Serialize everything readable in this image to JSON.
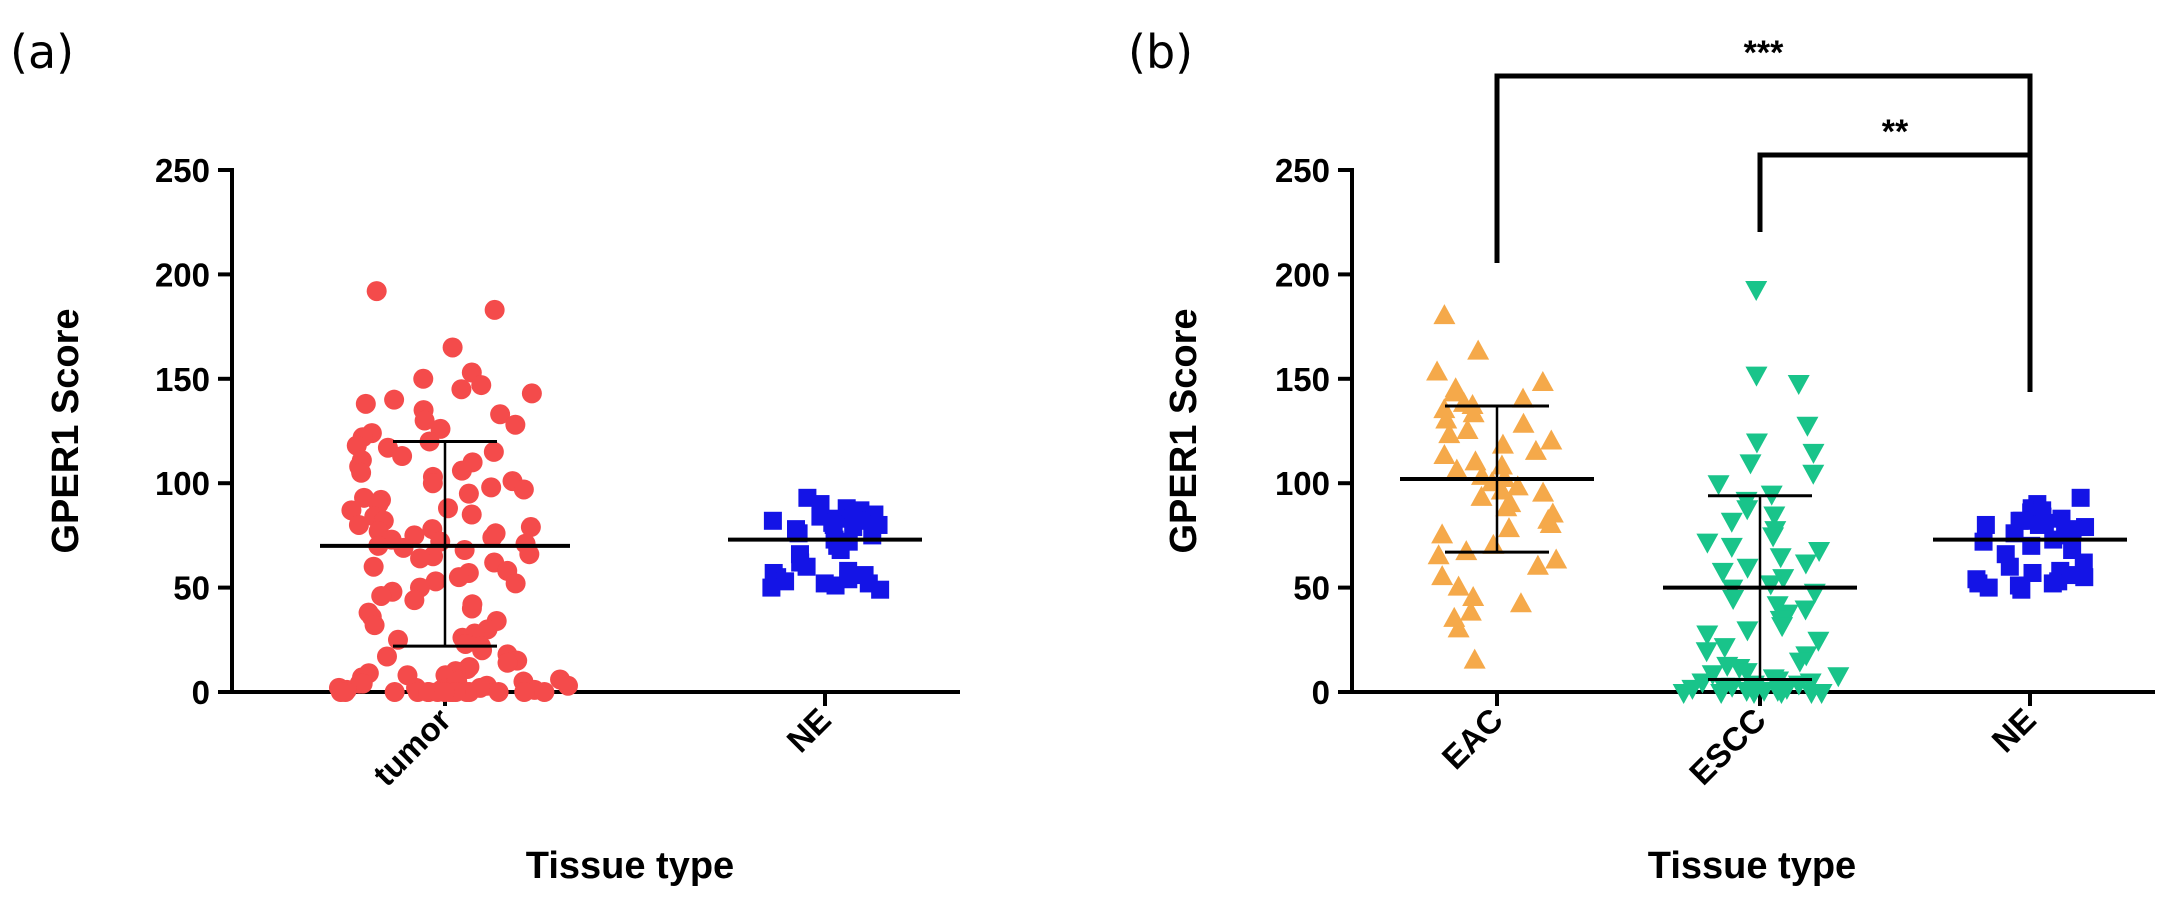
{
  "chart_data": [
    {
      "type": "scatter",
      "subtype": "dot-plot",
      "panel_label": "(a)",
      "xlabel": "Tissue type",
      "ylabel": "GPER1 Score",
      "ylim": [
        0,
        250
      ],
      "yticks": [
        0,
        50,
        100,
        150,
        200,
        250
      ],
      "categories": [
        "tumor",
        "NE"
      ],
      "series": [
        {
          "name": "tumor",
          "marker": "circle",
          "color": "#f44b4b",
          "mean": 70,
          "sd_upper": 120,
          "sd_lower": 22,
          "values": [
            192,
            183,
            165,
            153,
            150,
            147,
            145,
            143,
            140,
            138,
            135,
            133,
            130,
            128,
            126,
            124,
            122,
            120,
            118,
            117,
            115,
            113,
            111,
            110,
            108,
            106,
            105,
            103,
            101,
            100,
            98,
            97,
            95,
            93,
            92,
            90,
            88,
            87,
            85,
            84,
            82,
            80,
            79,
            78,
            77,
            76,
            75,
            74,
            73,
            72,
            71,
            70,
            69,
            68,
            66,
            65,
            64,
            62,
            60,
            58,
            57,
            55,
            53,
            52,
            50,
            48,
            46,
            44,
            42,
            40,
            38,
            36,
            34,
            32,
            30,
            28,
            26,
            25,
            23,
            22,
            20,
            18,
            17,
            15,
            14,
            12,
            11,
            10,
            9,
            8,
            8,
            7,
            6,
            6,
            5,
            5,
            4,
            4,
            3,
            3,
            2,
            2,
            2,
            1,
            1,
            1,
            0,
            0,
            0,
            0,
            0,
            0,
            0,
            0,
            0,
            0,
            0,
            0,
            0,
            0,
            0,
            0
          ]
        },
        {
          "name": "NE",
          "marker": "square",
          "color": "#1414e6",
          "mean": 73,
          "values": [
            93,
            90,
            88,
            87,
            86,
            85,
            84,
            83,
            82,
            82,
            81,
            80,
            80,
            79,
            78,
            76,
            75,
            73,
            72,
            70,
            68,
            66,
            62,
            60,
            58,
            57,
            56,
            55,
            54,
            53,
            52,
            52,
            51,
            50,
            49
          ]
        }
      ]
    },
    {
      "type": "scatter",
      "subtype": "dot-plot",
      "panel_label": "(b)",
      "xlabel": "Tissue type",
      "ylabel": "GPER1 Score",
      "ylim": [
        0,
        250
      ],
      "yticks": [
        0,
        50,
        100,
        150,
        200,
        250
      ],
      "categories": [
        "EAC",
        "ESCC",
        "NE"
      ],
      "significance": [
        {
          "from": "EAC",
          "to": "NE",
          "label": "***"
        },
        {
          "from": "ESCC",
          "to": "NE",
          "label": "**"
        }
      ],
      "series": [
        {
          "name": "EAC",
          "marker": "triangle-up",
          "color": "#f5a94a",
          "mean": 102,
          "sd_upper": 137,
          "sd_lower": 67,
          "values": [
            180,
            163,
            153,
            148,
            145,
            143,
            140,
            138,
            137,
            135,
            133,
            130,
            128,
            125,
            123,
            120,
            118,
            115,
            113,
            110,
            108,
            106,
            105,
            103,
            102,
            100,
            98,
            96,
            95,
            93,
            90,
            88,
            85,
            82,
            80,
            78,
            75,
            70,
            67,
            65,
            63,
            60,
            55,
            50,
            45,
            42,
            38,
            35,
            30,
            15
          ]
        },
        {
          "name": "ESCC",
          "marker": "triangle-down",
          "color": "#19c48a",
          "mean": 50,
          "sd_upper": 94,
          "sd_lower": 6,
          "values": [
            193,
            152,
            148,
            128,
            120,
            115,
            110,
            105,
            100,
            95,
            92,
            88,
            85,
            82,
            78,
            75,
            72,
            70,
            68,
            65,
            62,
            60,
            58,
            55,
            52,
            50,
            48,
            45,
            42,
            40,
            38,
            35,
            32,
            30,
            28,
            25,
            22,
            20,
            18,
            15,
            13,
            12,
            10,
            9,
            8,
            7,
            6,
            5,
            5,
            4,
            4,
            3,
            3,
            2,
            2,
            2,
            1,
            1,
            1,
            0,
            0,
            0,
            0,
            0,
            0
          ]
        },
        {
          "name": "NE",
          "marker": "square",
          "color": "#1414e6",
          "mean": 73,
          "values": [
            93,
            90,
            88,
            87,
            86,
            85,
            84,
            83,
            82,
            82,
            81,
            80,
            80,
            79,
            78,
            76,
            75,
            73,
            72,
            70,
            68,
            66,
            62,
            60,
            58,
            57,
            56,
            55,
            54,
            53,
            52,
            52,
            51,
            50,
            49
          ]
        }
      ]
    }
  ]
}
